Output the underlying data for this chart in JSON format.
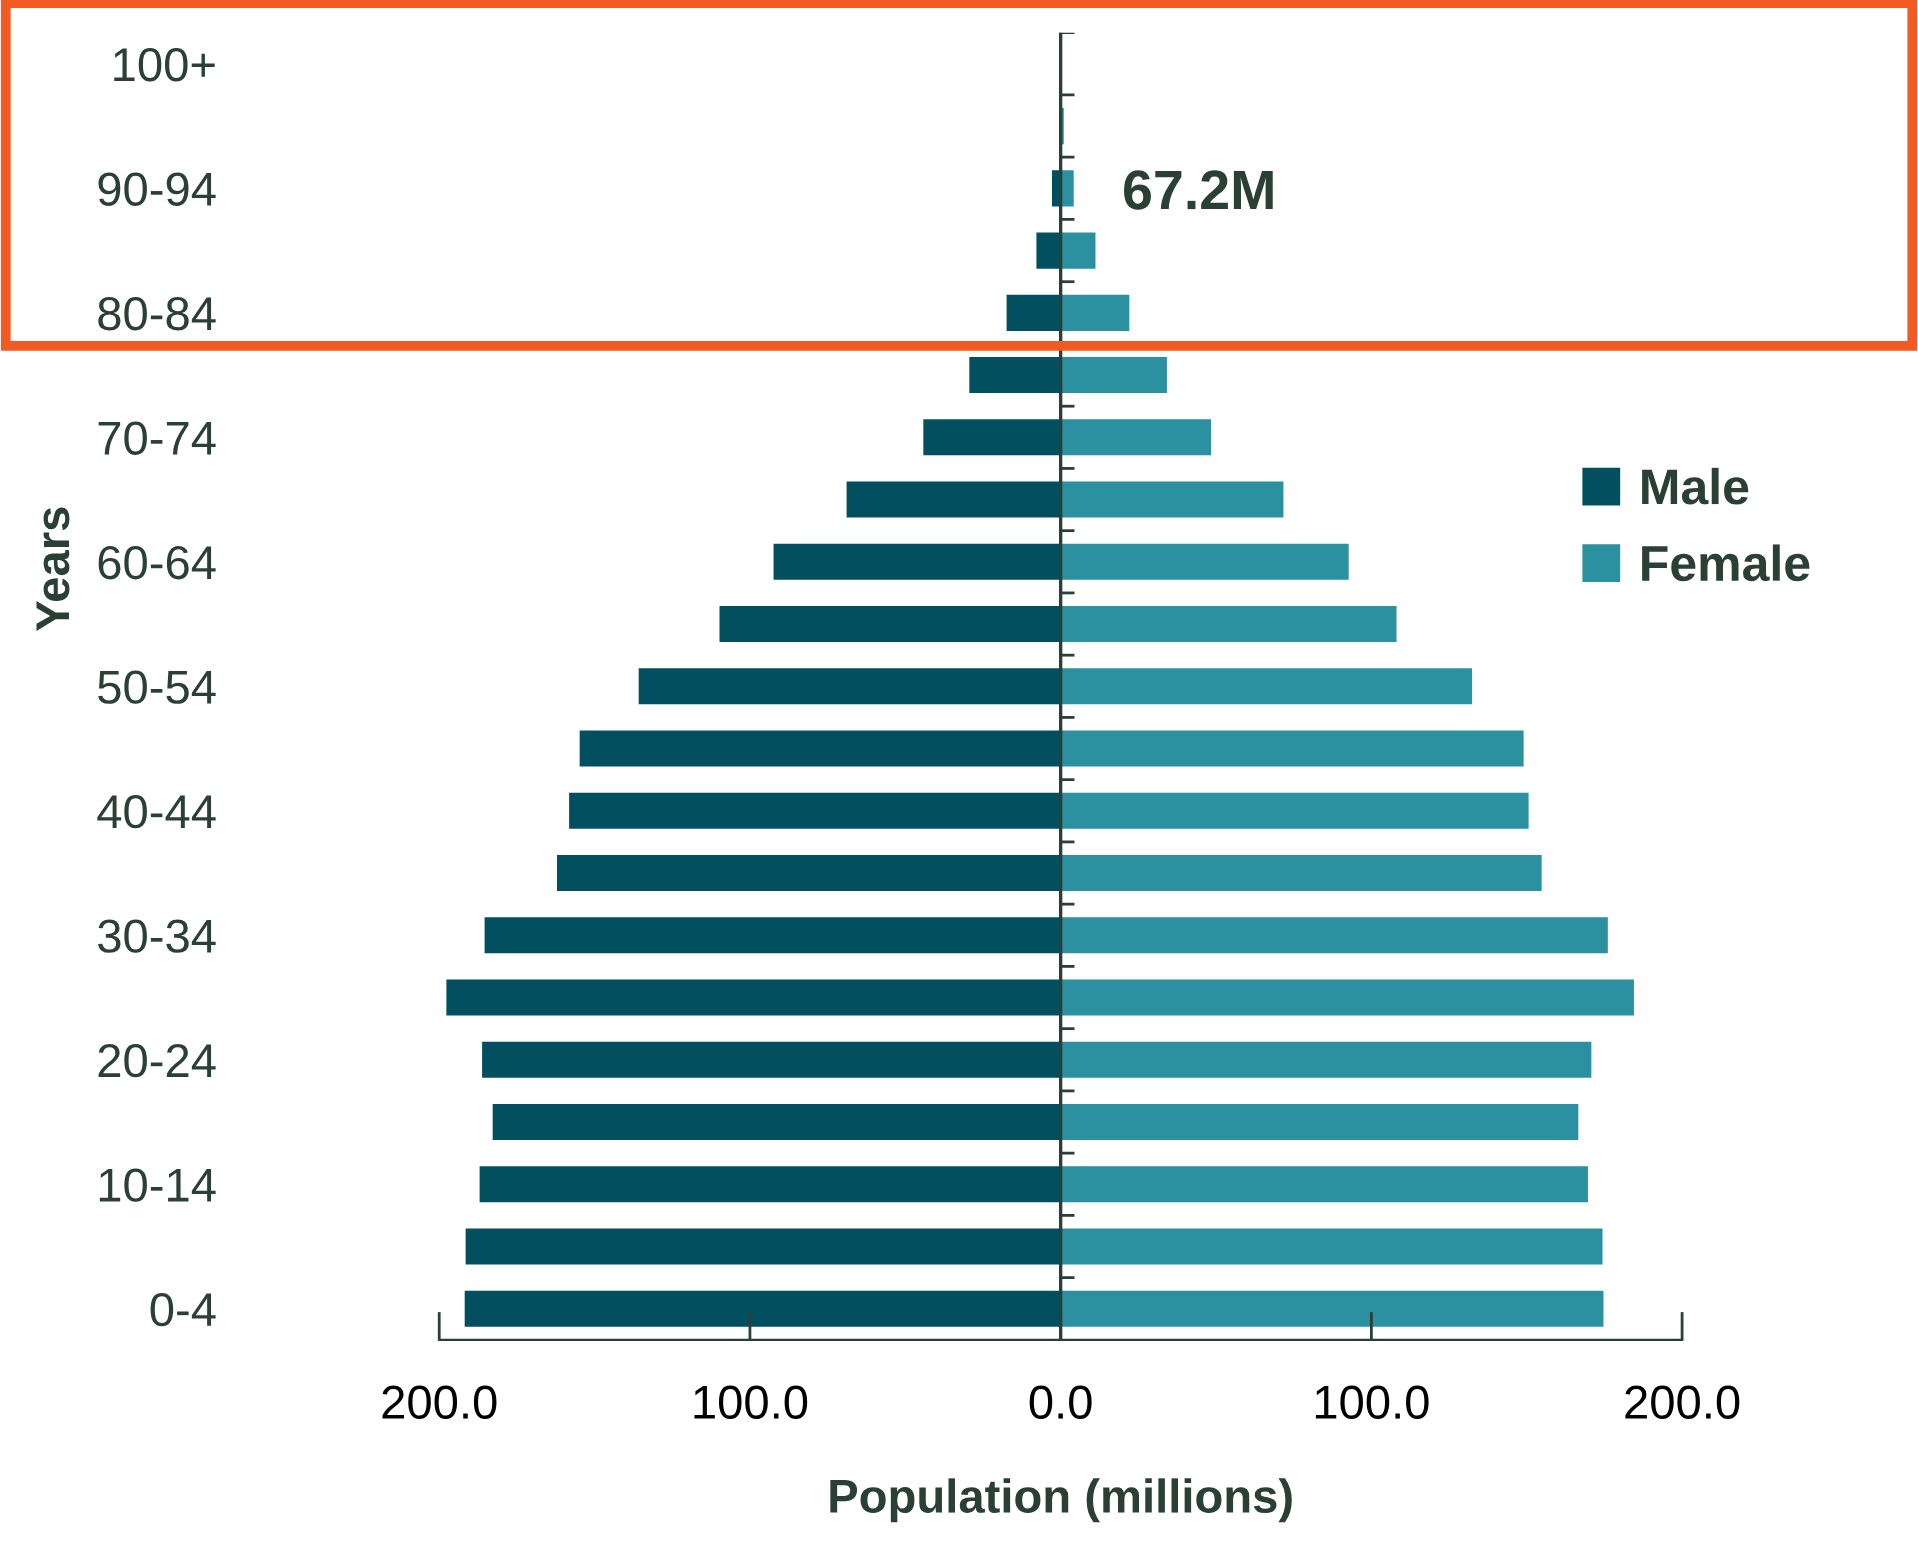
{
  "chart_data": {
    "type": "bar",
    "orientation": "horizontal",
    "stacked": true,
    "xlabel": "Population (millions)",
    "ylabel": "Years",
    "categories": [
      "100+",
      null,
      "90-94",
      null,
      "80-84",
      null,
      "70-74",
      null,
      "60-64",
      null,
      "50-54",
      null,
      "40-44",
      null,
      "30-34",
      null,
      "20-24",
      null,
      "10-14",
      null,
      "0-4"
    ],
    "series": [
      {
        "name": "Male",
        "color": "#02505f",
        "values": [
          0,
          -0.3,
          -2.8,
          -7.8,
          -17.4,
          -29.4,
          -44.2,
          -68.9,
          -92.4,
          -109.8,
          -135.8,
          -154.8,
          -158.2,
          -162.1,
          -185.4,
          -197.7,
          -186.2,
          -182.8,
          -187.0,
          -191.5,
          -191.8
        ]
      },
      {
        "name": "Female",
        "color": "#2b90a0",
        "values": [
          0,
          1.0,
          4.2,
          11.2,
          22.1,
          34.2,
          48.4,
          71.7,
          92.7,
          108.1,
          132.4,
          149.0,
          150.6,
          154.8,
          176.1,
          184.5,
          170.8,
          166.6,
          169.7,
          174.4,
          174.7
        ]
      }
    ],
    "xlim": [
      -200,
      200
    ],
    "xticks": [
      {
        "value": -200,
        "label": "200.0"
      },
      {
        "value": -100,
        "label": "100.0"
      },
      {
        "value": 0,
        "label": "0.0"
      },
      {
        "value": 100,
        "label": "100.0"
      },
      {
        "value": 200,
        "label": "200.0"
      }
    ],
    "ref_lines": [
      {
        "axis": "x",
        "value": 0,
        "color": "#2a3f36"
      }
    ],
    "annotations": [
      "67.2M"
    ],
    "legend": "right",
    "grid": false
  }
}
